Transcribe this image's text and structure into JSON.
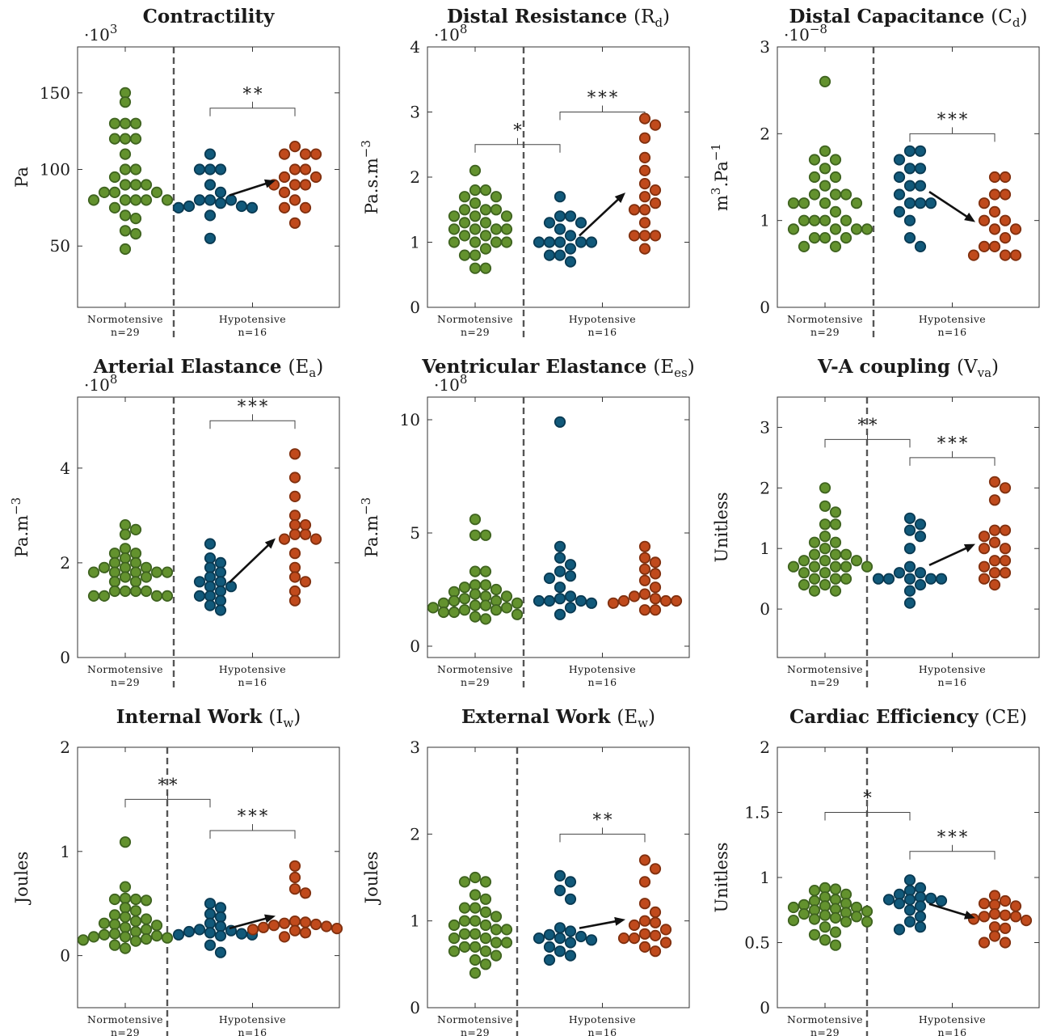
{
  "groups": {
    "normotensive": {
      "name": "Normotensive",
      "n": "n=29"
    },
    "hypotensive": {
      "name": "Hypotensive",
      "n": "n=16"
    }
  },
  "colors": {
    "normotensive_fill": "#63922e",
    "normotensive_edge": "#3f6320",
    "hypo_before_fill": "#11597a",
    "hypo_before_edge": "#0a3a52",
    "hypo_after_fill": "#c04a1c",
    "hypo_after_edge": "#80300f",
    "divider": "#555555"
  },
  "chart_data": [
    {
      "type": "scatter",
      "title": "Contractility",
      "symbol": "",
      "subscript": "",
      "ylabel": "Pa",
      "multiplier": "·10",
      "multiplier_exp": "3",
      "ylim": [
        10,
        180
      ],
      "yticks": [
        50,
        100,
        150
      ],
      "normotensive": [
        150,
        144,
        130,
        130,
        130,
        120,
        120,
        120,
        110,
        100,
        100,
        95,
        90,
        90,
        90,
        85,
        85,
        85,
        80,
        80,
        80,
        80,
        75,
        70,
        68,
        60,
        58,
        48,
        80
      ],
      "hypotensive_before": [
        110,
        100,
        100,
        100,
        90,
        85,
        80,
        80,
        80,
        78,
        76,
        76,
        75,
        75,
        70,
        55
      ],
      "hypotensive_after": [
        115,
        110,
        110,
        110,
        100,
        100,
        95,
        95,
        90,
        90,
        90,
        85,
        80,
        75,
        75,
        65
      ],
      "brackets": [
        {
          "from": "hypo_before",
          "to": "hypo_after",
          "y": 140,
          "label": "**"
        }
      ]
    },
    {
      "type": "scatter",
      "title": "Distal Resistance",
      "symbol": "R",
      "subscript": "d",
      "ylabel": "Pa.s.m",
      "ylabel_exp": "−3",
      "multiplier": "·10",
      "multiplier_exp": "8",
      "ylim": [
        0,
        4
      ],
      "yticks": [
        0,
        1,
        2,
        3,
        4
      ],
      "normotensive": [
        2.1,
        1.8,
        1.8,
        1.7,
        1.7,
        1.6,
        1.5,
        1.5,
        1.5,
        1.4,
        1.4,
        1.4,
        1.3,
        1.3,
        1.2,
        1.2,
        1.2,
        1.2,
        1.1,
        1.1,
        1.0,
        1.0,
        1.0,
        1.0,
        0.9,
        0.8,
        0.8,
        0.6,
        0.6
      ],
      "hypotensive_before": [
        1.7,
        1.4,
        1.4,
        1.3,
        1.3,
        1.2,
        1.1,
        1.0,
        1.0,
        1.0,
        1.0,
        1.0,
        0.9,
        0.8,
        0.8,
        0.7
      ],
      "hypotensive_after": [
        2.9,
        2.8,
        2.6,
        2.3,
        2.1,
        1.9,
        1.8,
        1.7,
        1.6,
        1.5,
        1.5,
        1.3,
        1.1,
        1.1,
        1.1,
        0.9
      ],
      "brackets": [
        {
          "from": "normo",
          "to": "hypo_before",
          "y": 2.5,
          "label": "*"
        },
        {
          "from": "hypo_before",
          "to": "hypo_after",
          "y": 3.0,
          "label": "***"
        }
      ]
    },
    {
      "type": "scatter",
      "title": "Distal Capacitance",
      "symbol": "C",
      "subscript": "d",
      "ylabel": "m",
      "ylabel_exp": "3",
      "ylabel_tail": ".Pa",
      "ylabel_tail_exp": "−1",
      "multiplier": "·10",
      "multiplier_exp": "−8",
      "ylim": [
        0,
        3
      ],
      "yticks": [
        0,
        1,
        2,
        3
      ],
      "normotensive": [
        2.6,
        1.8,
        1.7,
        1.7,
        1.6,
        1.5,
        1.5,
        1.4,
        1.3,
        1.3,
        1.3,
        1.2,
        1.2,
        1.2,
        1.2,
        1.1,
        1.0,
        1.0,
        1.0,
        1.0,
        0.9,
        0.9,
        0.9,
        0.9,
        0.8,
        0.8,
        0.8,
        0.7,
        0.7
      ],
      "hypotensive_before": [
        1.8,
        1.8,
        1.7,
        1.6,
        1.6,
        1.5,
        1.4,
        1.4,
        1.3,
        1.2,
        1.2,
        1.2,
        1.1,
        0.8,
        0.7,
        1.0
      ],
      "hypotensive_after": [
        1.5,
        1.5,
        1.3,
        1.3,
        1.2,
        1.1,
        1.0,
        1.0,
        0.9,
        0.9,
        0.8,
        0.7,
        0.7,
        0.6,
        0.6,
        0.6
      ],
      "brackets": [
        {
          "from": "hypo_before",
          "to": "hypo_after",
          "y": 2.0,
          "label": "***"
        }
      ]
    },
    {
      "type": "scatter",
      "title": "Arterial Elastance",
      "symbol": "E",
      "subscript": "a",
      "ylabel": "Pa.m",
      "ylabel_exp": "−3",
      "multiplier": "·10",
      "multiplier_exp": "8",
      "ylim": [
        0,
        5.5
      ],
      "yticks": [
        0,
        2,
        4
      ],
      "normotensive": [
        2.8,
        2.7,
        2.6,
        2.3,
        2.2,
        2.2,
        2.1,
        2.0,
        2.0,
        1.9,
        1.9,
        1.9,
        1.8,
        1.8,
        1.8,
        1.8,
        1.8,
        1.7,
        1.7,
        1.6,
        1.6,
        1.4,
        1.4,
        1.4,
        1.4,
        1.3,
        1.3,
        1.3,
        1.3
      ],
      "hypotensive_before": [
        2.4,
        2.1,
        2.0,
        1.9,
        1.8,
        1.7,
        1.6,
        1.6,
        1.5,
        1.4,
        1.3,
        1.3,
        1.2,
        1.1,
        1.0,
        1.5
      ],
      "hypotensive_after": [
        4.3,
        3.8,
        3.4,
        3.0,
        2.8,
        2.8,
        2.6,
        2.6,
        2.5,
        2.5,
        2.2,
        1.9,
        1.7,
        1.6,
        1.4,
        1.2
      ],
      "brackets": [
        {
          "from": "hypo_before",
          "to": "hypo_after",
          "y": 5.0,
          "label": "***"
        }
      ]
    },
    {
      "type": "scatter",
      "title": "Ventricular Elastance",
      "symbol": "E",
      "subscript": "es",
      "ylabel": "Pa.m",
      "ylabel_exp": "−3",
      "multiplier": "·10",
      "multiplier_exp": "8",
      "ylim": [
        -0.5,
        11
      ],
      "yticks": [
        0,
        5,
        10
      ],
      "normotensive": [
        5.6,
        4.9,
        4.9,
        3.3,
        3.3,
        2.7,
        2.7,
        2.6,
        2.4,
        2.3,
        2.2,
        2.2,
        2.1,
        2.0,
        2.0,
        1.9,
        1.9,
        1.8,
        1.7,
        1.7,
        1.6,
        1.6,
        1.5,
        1.5,
        1.4,
        1.3,
        1.2,
        2.5,
        1.8
      ],
      "hypotensive_before": [
        9.9,
        4.4,
        3.9,
        3.6,
        3.3,
        3.1,
        3.0,
        2.6,
        2.2,
        2.0,
        2.0,
        2.0,
        1.9,
        1.7,
        1.4,
        2.1
      ],
      "hypotensive_after": [
        4.4,
        3.9,
        3.7,
        3.4,
        3.2,
        2.9,
        2.6,
        2.3,
        2.2,
        2.1,
        2.0,
        2.0,
        2.0,
        1.9,
        1.6,
        1.6
      ],
      "brackets": []
    },
    {
      "type": "scatter",
      "title": "V-A coupling",
      "symbol": "V",
      "subscript": "va",
      "ylabel": "Unitless",
      "multiplier": "",
      "multiplier_exp": "",
      "ylim": [
        -0.8,
        3.5
      ],
      "yticks": [
        0,
        1,
        2,
        3
      ],
      "normotensive": [
        2.0,
        1.7,
        1.6,
        1.4,
        1.4,
        1.2,
        1.1,
        1.1,
        1.0,
        0.9,
        0.9,
        0.9,
        0.8,
        0.8,
        0.8,
        0.7,
        0.7,
        0.7,
        0.7,
        0.7,
        0.6,
        0.6,
        0.5,
        0.5,
        0.5,
        0.4,
        0.4,
        0.3,
        0.3
      ],
      "hypotensive_before": [
        1.5,
        1.4,
        1.3,
        1.2,
        1.0,
        0.7,
        0.6,
        0.6,
        0.5,
        0.5,
        0.5,
        0.5,
        0.4,
        0.3,
        0.1,
        0.5
      ],
      "hypotensive_after": [
        2.1,
        2.0,
        1.8,
        1.3,
        1.3,
        1.2,
        1.1,
        1.0,
        1.0,
        0.8,
        0.8,
        0.7,
        0.6,
        0.6,
        0.5,
        0.4
      ],
      "brackets": [
        {
          "from": "normo",
          "to": "hypo_before",
          "y": 2.8,
          "label": "**"
        },
        {
          "from": "hypo_before",
          "to": "hypo_after",
          "y": 2.5,
          "label": "***"
        }
      ]
    },
    {
      "type": "scatter",
      "title": "Internal Work",
      "symbol": "I",
      "subscript": "w",
      "ylabel": "Joules",
      "multiplier": "",
      "multiplier_exp": "",
      "ylim": [
        -0.5,
        2
      ],
      "yticks": [
        0,
        1,
        2
      ],
      "normotensive": [
        1.09,
        0.66,
        0.55,
        0.54,
        0.54,
        0.53,
        0.46,
        0.43,
        0.39,
        0.37,
        0.35,
        0.33,
        0.31,
        0.29,
        0.27,
        0.25,
        0.23,
        0.21,
        0.2,
        0.19,
        0.18,
        0.18,
        0.17,
        0.16,
        0.15,
        0.14,
        0.1,
        0.07,
        0.3
      ],
      "hypotensive_before": [
        0.5,
        0.46,
        0.4,
        0.37,
        0.31,
        0.28,
        0.25,
        0.24,
        0.23,
        0.22,
        0.21,
        0.2,
        0.2,
        0.19,
        0.1,
        0.03
      ],
      "hypotensive_after": [
        0.86,
        0.75,
        0.64,
        0.6,
        0.33,
        0.32,
        0.31,
        0.3,
        0.29,
        0.28,
        0.27,
        0.26,
        0.25,
        0.24,
        0.22,
        0.18
      ],
      "brackets": [
        {
          "from": "normo",
          "to": "hypo_before",
          "y": 1.5,
          "label": "**"
        },
        {
          "from": "hypo_before",
          "to": "hypo_after",
          "y": 1.2,
          "label": "***"
        }
      ]
    },
    {
      "type": "scatter",
      "title": "External Work",
      "symbol": "E",
      "subscript": "w",
      "ylabel": "Joules",
      "multiplier": "",
      "multiplier_exp": "",
      "ylim": [
        0,
        3
      ],
      "yticks": [
        0,
        1,
        2,
        3
      ],
      "normotensive": [
        1.5,
        1.45,
        1.45,
        1.3,
        1.25,
        1.15,
        1.15,
        1.1,
        1.05,
        1.0,
        1.0,
        0.95,
        0.9,
        0.9,
        0.85,
        0.85,
        0.8,
        0.8,
        0.75,
        0.7,
        0.7,
        0.65,
        0.65,
        0.6,
        0.55,
        0.5,
        0.4,
        0.95,
        0.75
      ],
      "hypotensive_before": [
        1.52,
        1.45,
        1.35,
        1.25,
        0.92,
        0.88,
        0.84,
        0.82,
        0.8,
        0.8,
        0.78,
        0.75,
        0.7,
        0.65,
        0.6,
        0.55
      ],
      "hypotensive_after": [
        1.7,
        1.6,
        1.45,
        1.2,
        1.1,
        1.0,
        0.98,
        0.95,
        0.9,
        0.85,
        0.83,
        0.8,
        0.8,
        0.75,
        0.7,
        0.65
      ],
      "brackets": [
        {
          "from": "hypo_before",
          "to": "hypo_after",
          "y": 2.0,
          "label": "**"
        }
      ]
    },
    {
      "type": "scatter",
      "title": "Cardiac Efficiency",
      "symbol": "CE",
      "subscript": "",
      "ylabel": "Unitless",
      "multiplier": "",
      "multiplier_exp": "",
      "ylim": [
        0,
        2
      ],
      "yticks": [
        0,
        0.5,
        1,
        1.5,
        2
      ],
      "yticklabels": [
        "0",
        "0.5",
        "1",
        "1.5",
        "2"
      ],
      "normotensive": [
        0.92,
        0.91,
        0.9,
        0.87,
        0.85,
        0.83,
        0.82,
        0.8,
        0.79,
        0.78,
        0.77,
        0.77,
        0.76,
        0.75,
        0.74,
        0.73,
        0.72,
        0.71,
        0.7,
        0.69,
        0.68,
        0.67,
        0.66,
        0.66,
        0.62,
        0.58,
        0.56,
        0.52,
        0.48
      ],
      "hypotensive_before": [
        0.98,
        0.92,
        0.9,
        0.87,
        0.85,
        0.84,
        0.83,
        0.83,
        0.82,
        0.8,
        0.78,
        0.75,
        0.7,
        0.66,
        0.62,
        0.6
      ],
      "hypotensive_after": [
        0.86,
        0.82,
        0.8,
        0.79,
        0.78,
        0.72,
        0.71,
        0.7,
        0.7,
        0.68,
        0.67,
        0.62,
        0.61,
        0.55,
        0.5,
        0.5
      ],
      "brackets": [
        {
          "from": "normo",
          "to": "hypo_before",
          "y": 1.5,
          "label": "*"
        },
        {
          "from": "hypo_before",
          "to": "hypo_after",
          "y": 1.2,
          "label": "***"
        }
      ]
    }
  ]
}
